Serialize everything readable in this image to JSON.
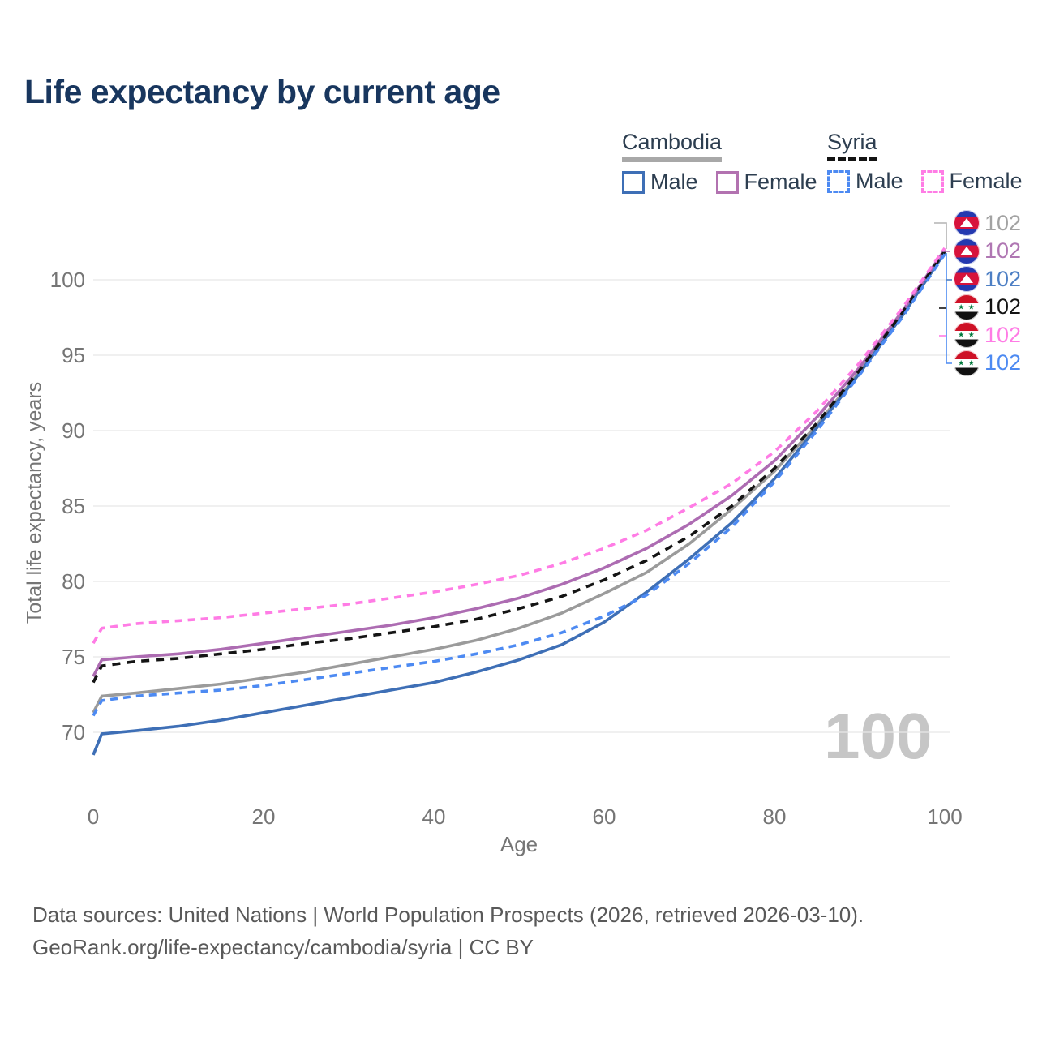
{
  "title": "Life expectancy by current age",
  "legend": {
    "cambodia": {
      "label": "Cambodia",
      "line_style": "solid",
      "line_color": "#a8a8a8"
    },
    "syria": {
      "label": "Syria",
      "line_style": "dashed",
      "line_color": "#141414"
    },
    "male_label": "Male",
    "female_label": "Female",
    "swatch_colors": {
      "cambodia_male": "#3e6fb6",
      "cambodia_female": "#b272b0",
      "syria_male": "#4d8af2",
      "syria_female": "#ff7ce5"
    }
  },
  "chart_data": {
    "type": "line",
    "title": "Life expectancy by current age",
    "xlabel": "Age",
    "ylabel": "Total life expectancy, years",
    "xlim": [
      0,
      100
    ],
    "ylim": [
      67.5,
      103
    ],
    "xticks": [
      0,
      20,
      40,
      60,
      80,
      100
    ],
    "yticks": [
      70,
      75,
      80,
      85,
      90,
      95,
      100
    ],
    "grid": "horizontal",
    "legend_position": "top-right",
    "watermark": "100",
    "series": [
      {
        "id": "cambodia-total",
        "name": "Cambodia",
        "sex": "Total",
        "color": "#9b9b9b",
        "dash": "",
        "end_label": 102,
        "points": [
          [
            0,
            71.3
          ],
          [
            1,
            72.4
          ],
          [
            5,
            72.6
          ],
          [
            10,
            72.9
          ],
          [
            15,
            73.2
          ],
          [
            20,
            73.6
          ],
          [
            25,
            74.0
          ],
          [
            30,
            74.5
          ],
          [
            35,
            75.0
          ],
          [
            40,
            75.5
          ],
          [
            45,
            76.1
          ],
          [
            50,
            76.9
          ],
          [
            55,
            77.9
          ],
          [
            60,
            79.2
          ],
          [
            65,
            80.6
          ],
          [
            70,
            82.5
          ],
          [
            75,
            84.8
          ],
          [
            80,
            87.3
          ],
          [
            85,
            90.4
          ],
          [
            90,
            93.9
          ],
          [
            95,
            97.7
          ],
          [
            100,
            101.9
          ]
        ]
      },
      {
        "id": "cambodia-male",
        "name": "Cambodia",
        "sex": "Male",
        "color": "#3e6fb6",
        "dash": "",
        "end_label": 102,
        "points": [
          [
            0,
            68.5
          ],
          [
            1,
            69.9
          ],
          [
            5,
            70.1
          ],
          [
            10,
            70.4
          ],
          [
            15,
            70.8
          ],
          [
            20,
            71.3
          ],
          [
            25,
            71.8
          ],
          [
            30,
            72.3
          ],
          [
            35,
            72.8
          ],
          [
            40,
            73.3
          ],
          [
            45,
            74.0
          ],
          [
            50,
            74.8
          ],
          [
            55,
            75.8
          ],
          [
            60,
            77.3
          ],
          [
            65,
            79.3
          ],
          [
            70,
            81.5
          ],
          [
            75,
            83.9
          ],
          [
            80,
            86.8
          ],
          [
            85,
            90.2
          ],
          [
            90,
            93.8
          ],
          [
            95,
            97.6
          ],
          [
            100,
            101.8
          ]
        ]
      },
      {
        "id": "cambodia-female",
        "name": "Cambodia",
        "sex": "Female",
        "color": "#ad6cb2",
        "dash": "",
        "end_label": 102,
        "points": [
          [
            0,
            73.7
          ],
          [
            1,
            74.8
          ],
          [
            5,
            75.0
          ],
          [
            10,
            75.2
          ],
          [
            15,
            75.5
          ],
          [
            20,
            75.9
          ],
          [
            25,
            76.3
          ],
          [
            30,
            76.7
          ],
          [
            35,
            77.1
          ],
          [
            40,
            77.6
          ],
          [
            45,
            78.2
          ],
          [
            50,
            78.9
          ],
          [
            55,
            79.8
          ],
          [
            60,
            80.9
          ],
          [
            65,
            82.2
          ],
          [
            70,
            83.8
          ],
          [
            75,
            85.7
          ],
          [
            80,
            88.0
          ],
          [
            85,
            90.9
          ],
          [
            90,
            94.2
          ],
          [
            95,
            97.9
          ],
          [
            100,
            102.0
          ]
        ]
      },
      {
        "id": "syria-total",
        "name": "Syria",
        "sex": "Total",
        "color": "#141414",
        "dash": "10 8",
        "end_label": 102,
        "points": [
          [
            0,
            73.3
          ],
          [
            1,
            74.4
          ],
          [
            5,
            74.7
          ],
          [
            10,
            74.9
          ],
          [
            15,
            75.2
          ],
          [
            20,
            75.5
          ],
          [
            25,
            75.9
          ],
          [
            30,
            76.2
          ],
          [
            35,
            76.6
          ],
          [
            40,
            77.0
          ],
          [
            45,
            77.5
          ],
          [
            50,
            78.2
          ],
          [
            55,
            79.0
          ],
          [
            60,
            80.1
          ],
          [
            65,
            81.4
          ],
          [
            70,
            83.0
          ],
          [
            75,
            85.0
          ],
          [
            80,
            87.5
          ],
          [
            85,
            90.5
          ],
          [
            90,
            94.0
          ],
          [
            95,
            97.8
          ],
          [
            100,
            101.9
          ]
        ]
      },
      {
        "id": "syria-male",
        "name": "Syria",
        "sex": "Male",
        "color": "#4d8af2",
        "dash": "9 7",
        "end_label": 102,
        "points": [
          [
            0,
            71.1
          ],
          [
            1,
            72.1
          ],
          [
            5,
            72.4
          ],
          [
            10,
            72.6
          ],
          [
            15,
            72.8
          ],
          [
            20,
            73.1
          ],
          [
            25,
            73.5
          ],
          [
            30,
            73.9
          ],
          [
            35,
            74.3
          ],
          [
            40,
            74.7
          ],
          [
            45,
            75.2
          ],
          [
            50,
            75.8
          ],
          [
            55,
            76.6
          ],
          [
            60,
            77.7
          ],
          [
            65,
            79.1
          ],
          [
            70,
            81.2
          ],
          [
            75,
            83.6
          ],
          [
            80,
            86.6
          ],
          [
            85,
            90.0
          ],
          [
            90,
            93.7
          ],
          [
            95,
            97.5
          ],
          [
            100,
            101.7
          ]
        ]
      },
      {
        "id": "syria-female",
        "name": "Syria",
        "sex": "Female",
        "color": "#ff7ce5",
        "dash": "9 7",
        "end_label": 102,
        "points": [
          [
            0,
            75.9
          ],
          [
            1,
            76.9
          ],
          [
            5,
            77.2
          ],
          [
            10,
            77.4
          ],
          [
            15,
            77.6
          ],
          [
            20,
            77.9
          ],
          [
            25,
            78.2
          ],
          [
            30,
            78.5
          ],
          [
            35,
            78.9
          ],
          [
            40,
            79.3
          ],
          [
            45,
            79.8
          ],
          [
            50,
            80.4
          ],
          [
            55,
            81.2
          ],
          [
            60,
            82.2
          ],
          [
            65,
            83.4
          ],
          [
            70,
            84.9
          ],
          [
            75,
            86.5
          ],
          [
            80,
            88.6
          ],
          [
            85,
            91.3
          ],
          [
            90,
            94.5
          ],
          [
            95,
            98.1
          ],
          [
            100,
            102.1
          ]
        ]
      }
    ]
  },
  "right_labels": [
    {
      "country": "Cambodia",
      "flag": "cambodia-flag-icon",
      "value": "102",
      "color": "#a3a3a3"
    },
    {
      "country": "Cambodia",
      "flag": "cambodia-flag-icon",
      "value": "102",
      "color": "#b077b3"
    },
    {
      "country": "Cambodia",
      "flag": "cambodia-flag-icon",
      "value": "102",
      "color": "#4d7fc4"
    },
    {
      "country": "Syria",
      "flag": "syria-flag-icon",
      "value": "102",
      "color": "#141414"
    },
    {
      "country": "Syria",
      "flag": "syria-flag-icon",
      "value": "102",
      "color": "#ff7ce5"
    },
    {
      "country": "Syria",
      "flag": "syria-flag-icon",
      "value": "102",
      "color": "#4d8af2"
    }
  ],
  "footer": {
    "line1": "Data sources: United Nations | World Population Prospects (2026, retrieved 2026-03-10).",
    "line2": "GeoRank.org/life-expectancy/cambodia/syria | CC BY"
  }
}
